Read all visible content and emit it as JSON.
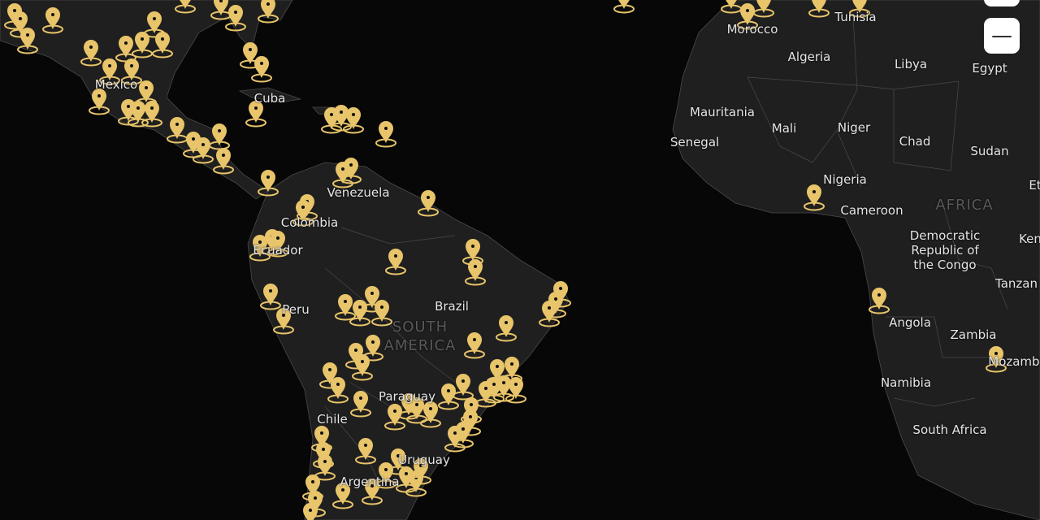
{
  "map": {
    "marker_color": "#e8c46a",
    "land_color": "#1f1f1f",
    "ocean_color": "#070707",
    "marker_icon": "map-pin-icon",
    "labels": {
      "mexico": "Mexico",
      "cuba": "Cuba",
      "venezuela": "Venezuela",
      "colombia": "Colombia",
      "ecuador": "Ecuador",
      "peru": "Peru",
      "brazil": "Brazil",
      "south_america": "SOUTH\nAMERICA",
      "paraguay": "Paraguay",
      "chile": "Chile",
      "uruguay": "Uruguay",
      "argentina": "Argentina",
      "morocco": "Morocco",
      "tunisia": "Tunisia",
      "algeria": "Algeria",
      "libya": "Libya",
      "egypt": "Egypt",
      "mauritania": "Mauritania",
      "mali": "Mali",
      "niger": "Niger",
      "chad": "Chad",
      "sudan": "Sudan",
      "senegal": "Senegal",
      "nigeria": "Nigeria",
      "cameroon": "Cameroon",
      "africa": "AFRICA",
      "drc": "Democratic\nRepublic of\nthe Congo",
      "kenya": "Ken",
      "tanzania": "Tanzan",
      "ethiopia": "Et",
      "angola": "Angola",
      "zambia": "Zambia",
      "mozambique": "Mozambi",
      "namibia": "Namibia",
      "south_africa": "South Africa"
    }
  },
  "controls": {
    "zoom_in": "+",
    "zoom_out": "—"
  }
}
